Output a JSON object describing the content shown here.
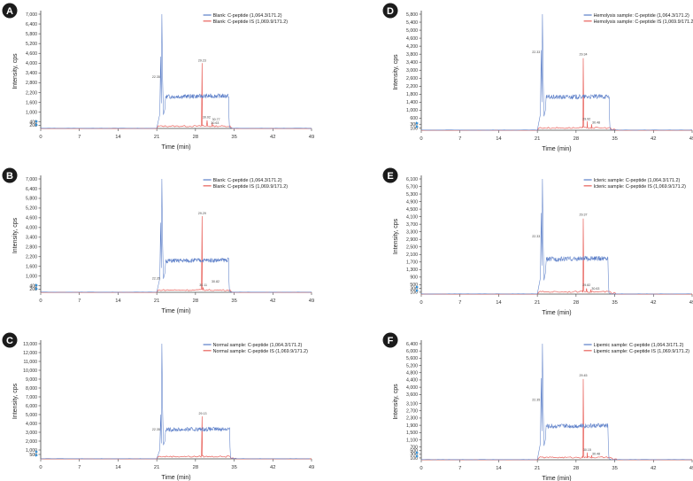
{
  "figure": {
    "xlabel": "Time (min)",
    "ylabel": "Intensity, cps",
    "series_colors": {
      "analyte": "#5b7ec8",
      "is": "#e8605a"
    },
    "marker_color": "#2f8fd8"
  },
  "chart_data": [
    {
      "type": "line",
      "panel": "A",
      "legend": [
        "Blank: C-peptide (1,064.3/171.2)",
        "Blank: C-peptide IS (1,069.9/171.2)"
      ],
      "x_ticks": [
        "0",
        "7",
        "14",
        "21",
        "28",
        "35",
        "42",
        "49"
      ],
      "y_ticks": [
        "7,000",
        "6,400",
        "5,800",
        "5,200",
        "4,600",
        "4,000",
        "3,400",
        "2,800",
        "2,200",
        "1,600",
        "1,000",
        "400",
        "200"
      ],
      "y_tick_values": [
        7000,
        6400,
        5800,
        5200,
        4600,
        4000,
        3400,
        2800,
        2200,
        1600,
        1000,
        400,
        200
      ],
      "xlim": [
        0,
        49
      ],
      "ylim": [
        0,
        7000
      ],
      "series": [
        {
          "name": "Blank: C-peptide (1,064.3/171.2)",
          "role": "analyte",
          "peak_time": 22.0,
          "peak_height": 7000,
          "pre_peak": 4400,
          "plateau_start": 22.6,
          "plateau_end": 34.0,
          "plateau_level": 1950
        },
        {
          "name": "Blank: C-peptide IS (1,069.9/171.2)",
          "role": "is",
          "peak_time": 29.2,
          "peak_height": 4000,
          "small_peaks": [
            [
              30.1,
              500
            ],
            [
              31.0,
              350
            ]
          ]
        }
      ],
      "annotations": [
        {
          "text": "22.35",
          "x": 21.6,
          "y": 3100,
          "anchor": "end"
        },
        {
          "text": "29.23",
          "x": 29.2,
          "y": 4100,
          "anchor": "middle"
        },
        {
          "text": "30.02",
          "x": 30.0,
          "y": 620,
          "anchor": "middle"
        },
        {
          "text": "30.77",
          "x": 31.0,
          "y": 500,
          "anchor": "start"
        },
        {
          "text": "30.63",
          "x": 30.8,
          "y": 260,
          "anchor": "start"
        }
      ]
    },
    {
      "type": "line",
      "panel": "B",
      "legend": [
        "Blank: C-peptide (1,064.3/171.2)",
        "Blank: C-peptide IS (1,069.9/171.2)"
      ],
      "x_ticks": [
        "0",
        "7",
        "14",
        "21",
        "28",
        "35",
        "42",
        "49"
      ],
      "y_ticks": [
        "7,000",
        "6,400",
        "5,800",
        "5,200",
        "4,600",
        "4,000",
        "3,400",
        "2,800",
        "2,200",
        "1,600",
        "1,000",
        "400",
        "200"
      ],
      "y_tick_values": [
        7000,
        6400,
        5800,
        5200,
        4600,
        4000,
        3400,
        2800,
        2200,
        1600,
        1000,
        400,
        200
      ],
      "xlim": [
        0,
        49
      ],
      "ylim": [
        0,
        7000
      ],
      "series": [
        {
          "name": "Blank: C-peptide (1,064.3/171.2)",
          "role": "analyte",
          "peak_time": 22.0,
          "peak_height": 7000,
          "pre_peak": 4300,
          "plateau_start": 22.6,
          "plateau_end": 34.0,
          "plateau_level": 1950
        },
        {
          "name": "Blank: C-peptide IS (1,069.9/171.2)",
          "role": "is",
          "peak_time": 29.2,
          "peak_height": 4700,
          "small_peaks": [
            [
              29.4,
              300
            ]
          ]
        }
      ],
      "annotations": [
        {
          "text": "29.29",
          "x": 29.2,
          "y": 4800,
          "anchor": "middle"
        },
        {
          "text": "22.35",
          "x": 21.6,
          "y": 800,
          "anchor": "end"
        },
        {
          "text": "30.11",
          "x": 29.4,
          "y": 380,
          "anchor": "middle"
        },
        {
          "text": "30.82",
          "x": 30.9,
          "y": 600,
          "anchor": "start"
        }
      ]
    },
    {
      "type": "line",
      "panel": "C",
      "legend": [
        "Normal sample: C-peptide (1,064.3/171.2)",
        "Normal sample: C-peptide IS (1,069.9/171.2)"
      ],
      "x_ticks": [
        "0",
        "7",
        "14",
        "21",
        "28",
        "35",
        "42",
        "49"
      ],
      "y_ticks": [
        "13,000",
        "12,000",
        "11,000",
        "10,000",
        "9,000",
        "8,000",
        "7,000",
        "6,000",
        "5,000",
        "4,000",
        "3,000",
        "2,000",
        "1,000",
        "500"
      ],
      "y_tick_values": [
        13000,
        12000,
        11000,
        10000,
        9000,
        8000,
        7000,
        6000,
        5000,
        4000,
        3000,
        2000,
        1000,
        500
      ],
      "xlim": [
        0,
        49
      ],
      "ylim": [
        0,
        13000
      ],
      "series": [
        {
          "name": "Normal sample: C-peptide (1,064.3/171.2)",
          "role": "analyte",
          "peak_time": 22.0,
          "peak_height": 13000,
          "pre_peak": 5000,
          "plateau_start": 22.6,
          "plateau_end": 34.2,
          "plateau_level": 3300
        },
        {
          "name": "Normal sample: C-peptide IS (1,069.9/171.2)",
          "role": "is",
          "peak_time": 29.2,
          "peak_height": 4800,
          "small_peaks": []
        }
      ],
      "annotations": [
        {
          "text": "22.35",
          "x": 21.6,
          "y": 3200,
          "anchor": "end"
        },
        {
          "text": "29.13",
          "x": 29.3,
          "y": 5000,
          "anchor": "middle"
        }
      ]
    },
    {
      "type": "line",
      "panel": "D",
      "legend": [
        "Hemolysis sample: C-peptide (1,064.3/171.2)",
        "Hemolysis sample: C-peptide IS (1,069.9/171.2)"
      ],
      "x_ticks": [
        "0",
        "7",
        "14",
        "21",
        "28",
        "35",
        "42",
        "49"
      ],
      "y_ticks": [
        "5,800",
        "5,400",
        "5,000",
        "4,600",
        "4,200",
        "3,800",
        "3,400",
        "3,000",
        "2,600",
        "2,200",
        "1,800",
        "1,400",
        "1,000",
        "600",
        "300",
        "100"
      ],
      "y_tick_values": [
        5800,
        5400,
        5000,
        4600,
        4200,
        3800,
        3400,
        3000,
        2600,
        2200,
        1800,
        1400,
        1000,
        600,
        300,
        100
      ],
      "xlim": [
        0,
        49
      ],
      "ylim": [
        0,
        5800
      ],
      "series": [
        {
          "name": "Hemolysis sample: C-peptide (1,064.3/171.2)",
          "role": "analyte",
          "peak_time": 22.0,
          "peak_height": 5800,
          "pre_peak": 4000,
          "plateau_start": 22.6,
          "plateau_end": 34.0,
          "plateau_level": 1650
        },
        {
          "name": "Hemolysis sample: C-peptide IS (1,069.9/171.2)",
          "role": "is",
          "peak_time": 29.3,
          "peak_height": 3600,
          "small_peaks": [
            [
              30.0,
              450
            ],
            [
              30.8,
              300
            ]
          ]
        }
      ],
      "annotations": [
        {
          "text": "22.33",
          "x": 21.5,
          "y": 3850,
          "anchor": "end"
        },
        {
          "text": "29.34",
          "x": 29.3,
          "y": 3750,
          "anchor": "middle"
        },
        {
          "text": "29.92",
          "x": 29.9,
          "y": 520,
          "anchor": "middle"
        },
        {
          "text": "30.48",
          "x": 30.9,
          "y": 330,
          "anchor": "start"
        }
      ]
    },
    {
      "type": "line",
      "panel": "E",
      "legend": [
        "Icteric sample: C-peptide (1,064.3/171.2)",
        "Icteric sample: C-peptide IS (1,069.9/171.2)"
      ],
      "x_ticks": [
        "0",
        "7",
        "14",
        "21",
        "28",
        "35",
        "42",
        "49"
      ],
      "y_ticks": [
        "6,100",
        "5,700",
        "5,300",
        "4,900",
        "4,500",
        "4,100",
        "3,700",
        "3,300",
        "2,900",
        "2,500",
        "2,100",
        "1,700",
        "1,300",
        "900",
        "500",
        "300",
        "100"
      ],
      "y_tick_values": [
        6100,
        5700,
        5300,
        4900,
        4500,
        4100,
        3700,
        3300,
        2900,
        2500,
        2100,
        1700,
        1300,
        900,
        500,
        300,
        100
      ],
      "xlim": [
        0,
        49
      ],
      "ylim": [
        0,
        6100
      ],
      "series": [
        {
          "name": "Icteric sample: C-peptide (1,064.3/171.2)",
          "role": "analyte",
          "peak_time": 22.0,
          "peak_height": 6100,
          "pre_peak": 4300,
          "plateau_start": 22.6,
          "plateau_end": 33.8,
          "plateau_level": 1850
        },
        {
          "name": "Icteric sample: C-peptide IS (1,069.9/171.2)",
          "role": "is",
          "peak_time": 29.3,
          "peak_height": 4000,
          "small_peaks": [
            [
              29.9,
              300
            ],
            [
              30.7,
              250
            ]
          ]
        }
      ],
      "annotations": [
        {
          "text": "22.33",
          "x": 21.5,
          "y": 3000,
          "anchor": "end"
        },
        {
          "text": "29.37",
          "x": 29.3,
          "y": 4150,
          "anchor": "middle"
        },
        {
          "text": "29.82",
          "x": 29.9,
          "y": 430,
          "anchor": "middle"
        },
        {
          "text": "30.63",
          "x": 30.8,
          "y": 230,
          "anchor": "start"
        }
      ]
    },
    {
      "type": "line",
      "panel": "F",
      "legend": [
        "Lipemic sample: C-peptide (1,064.3/171.2)",
        "Lipemic sample: C-peptide IS (1,069.9/171.2)"
      ],
      "x_ticks": [
        "0",
        "7",
        "14",
        "21",
        "28",
        "35",
        "42",
        "49"
      ],
      "y_ticks": [
        "6,400",
        "6,000",
        "5,600",
        "5,200",
        "4,800",
        "4,400",
        "4,000",
        "3,600",
        "3,100",
        "2,700",
        "2,300",
        "1,900",
        "1,500",
        "1,100",
        "700",
        "500",
        "300",
        "100"
      ],
      "y_tick_values": [
        6400,
        6000,
        5600,
        5200,
        4800,
        4400,
        4000,
        3600,
        3100,
        2700,
        2300,
        1900,
        1500,
        1100,
        700,
        500,
        300,
        100
      ],
      "xlim": [
        0,
        49
      ],
      "ylim": [
        0,
        6400
      ],
      "series": [
        {
          "name": "Lipemic sample: C-peptide (1,064.3/171.2)",
          "role": "analyte",
          "peak_time": 22.0,
          "peak_height": 6400,
          "pre_peak": 4500,
          "plateau_start": 22.6,
          "plateau_end": 33.8,
          "plateau_level": 1850
        },
        {
          "name": "Lipemic sample: C-peptide IS (1,069.9/171.2)",
          "role": "is",
          "peak_time": 29.3,
          "peak_height": 4450,
          "small_peaks": [
            [
              30.0,
              400
            ],
            [
              30.8,
              250
            ]
          ]
        }
      ],
      "annotations": [
        {
          "text": "22.35",
          "x": 21.5,
          "y": 3250,
          "anchor": "end"
        },
        {
          "text": "29.45",
          "x": 29.3,
          "y": 4600,
          "anchor": "middle"
        },
        {
          "text": "30.15",
          "x": 30.0,
          "y": 480,
          "anchor": "middle"
        },
        {
          "text": "30.48",
          "x": 30.9,
          "y": 280,
          "anchor": "start"
        }
      ]
    }
  ]
}
